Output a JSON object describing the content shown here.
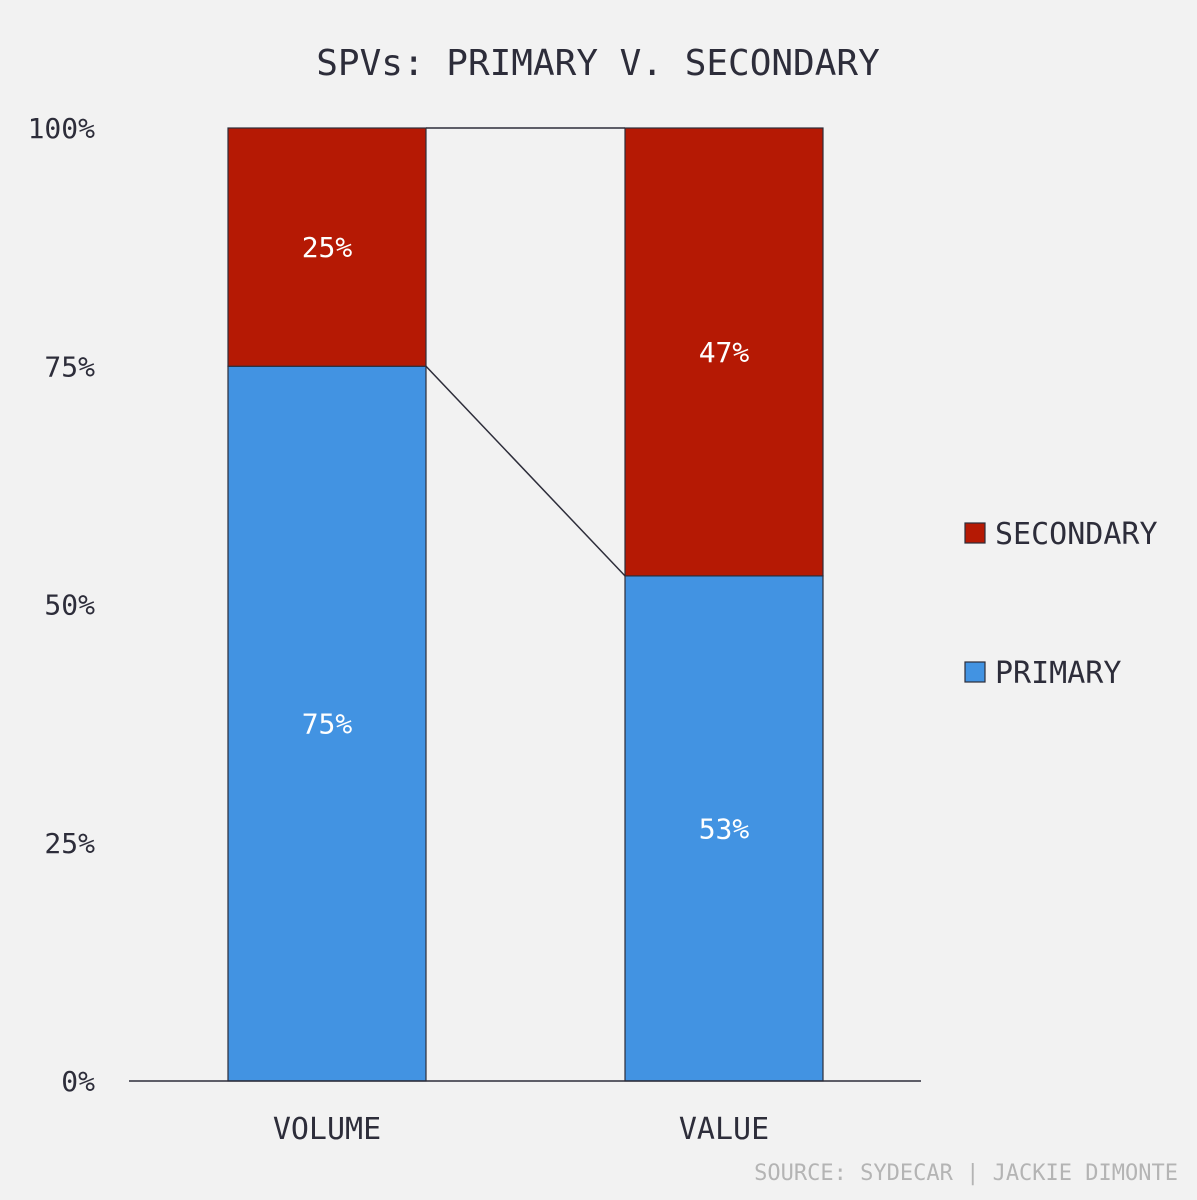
{
  "chart_data": {
    "type": "bar",
    "stacked": true,
    "title": "SPVs: PRIMARY V. SECONDARY",
    "categories": [
      "VOLUME",
      "VALUE"
    ],
    "series": [
      {
        "name": "PRIMARY",
        "values": [
          75,
          53
        ],
        "labels": [
          "75%",
          "53%"
        ],
        "color": "#4293e2"
      },
      {
        "name": "SECONDARY",
        "values": [
          25,
          47
        ],
        "labels": [
          "25%",
          "47%"
        ],
        "color": "#b51904"
      }
    ],
    "ylim": [
      0,
      100
    ],
    "yticks": [
      {
        "value": 0,
        "label": "0%"
      },
      {
        "value": 25,
        "label": "25%"
      },
      {
        "value": 50,
        "label": "50%"
      },
      {
        "value": 75,
        "label": "75%"
      },
      {
        "value": 100,
        "label": "100%"
      }
    ],
    "connector_line": true,
    "grid": false,
    "legend_position": "right",
    "source": "SOURCE: SYDECAR | JACKIE DIMONTE"
  },
  "colors": {
    "background": "#f2f2f2",
    "text": "#2d2d3a",
    "source": "#b4b4b4",
    "primary": "#4293e2",
    "secondary": "#b51904"
  }
}
